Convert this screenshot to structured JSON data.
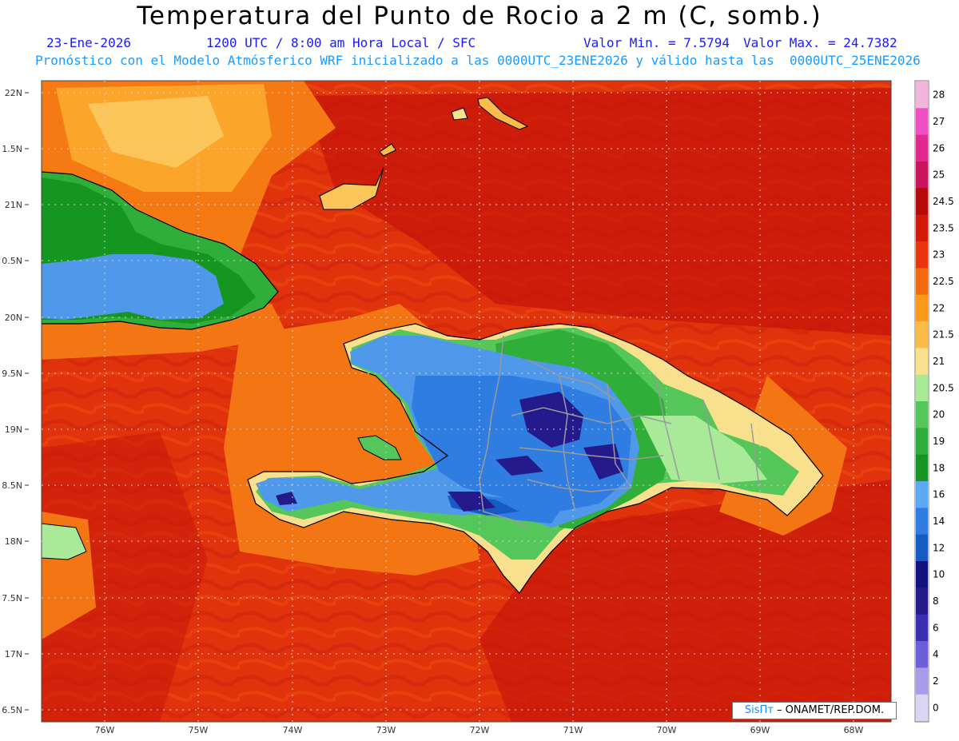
{
  "header": {
    "title": "Temperatura del Punto de Rocio a 2 m (C, somb.)",
    "date": "23-Ene-2026",
    "time_info": "1200 UTC / 8:00 am Hora Local / SFC",
    "min_value": "Valor Min. = 7.5794",
    "max_value": "Valor Max. = 24.7382",
    "model_info": "Pronóstico con el Modelo Atmósferico WRF inicializado a las 0000UTC_23ENE2026 y válido hasta las  0000UTC_25ENE2026"
  },
  "map": {
    "lat_labels": [
      "22N",
      "1.5N",
      "21N",
      "0.5N",
      "20N",
      "9.5N",
      "19N",
      "8.5N",
      "18N",
      "7.5N",
      "17N",
      "6.5N"
    ],
    "lon_labels": [
      "76W",
      "75W",
      "74W",
      "73W",
      "72W",
      "71W",
      "70W",
      "69W",
      "68W"
    ]
  },
  "colorbar": {
    "labels": [
      "28",
      "27",
      "26",
      "25",
      "24.5",
      "23.5",
      "23",
      "22.5",
      "22",
      "21.5",
      "21",
      "20.5",
      "20",
      "19",
      "18",
      "16",
      "14",
      "12",
      "10",
      "8",
      "6",
      "4",
      "2",
      "0"
    ],
    "colors": [
      "#f2b5dc",
      "#ee4fc2",
      "#e2278e",
      "#c9145e",
      "#b50a0a",
      "#d21a0a",
      "#e8360c",
      "#f26a0f",
      "#fb9a1a",
      "#fbbb48",
      "#f9e08c",
      "#a8ea98",
      "#55c659",
      "#2fae3a",
      "#149620",
      "#5ba9f2",
      "#2f7de0",
      "#165bc4",
      "#13127e",
      "#241a8c",
      "#3a2fb2",
      "#6b5ed6",
      "#a89ce8",
      "#d8d6f4"
    ]
  },
  "credit": {
    "brand": "SisПт",
    "text": " – ONAMET/REP.DOM."
  }
}
